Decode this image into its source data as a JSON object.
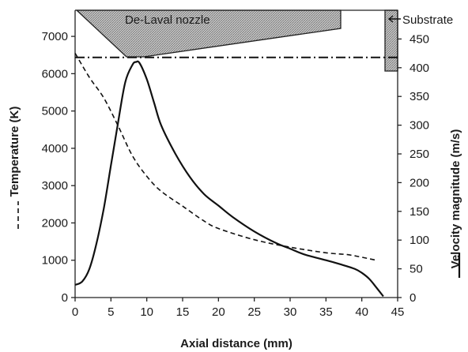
{
  "chart_data": {
    "type": "line",
    "title": "",
    "xlabel": "Axial distance (mm)",
    "ylabel": "Temperature (K)",
    "y2label": "Velocity magnitude (m/s)",
    "xlim": [
      0,
      45
    ],
    "ylim": [
      0,
      7700
    ],
    "y2lim": [
      0,
      500
    ],
    "xticks": [
      "0",
      "5",
      "10",
      "15",
      "20",
      "25",
      "30",
      "35",
      "40",
      "45"
    ],
    "yticks": [
      "0",
      "1000",
      "2000",
      "3000",
      "4000",
      "5000",
      "6000",
      "7000"
    ],
    "y2ticks": [
      "0",
      "50",
      "100",
      "150",
      "200",
      "250",
      "300",
      "350",
      "400",
      "450"
    ],
    "grid": false,
    "legend": "none",
    "series": [
      {
        "name": "Temperature",
        "axis": "left",
        "style": "dashed",
        "color": "#111111",
        "x": [
          0,
          2,
          4,
          6,
          8,
          10,
          12,
          15,
          18,
          20,
          25,
          30,
          35,
          38,
          40,
          42
        ],
        "y": [
          6550,
          5900,
          5350,
          4600,
          3800,
          3250,
          2850,
          2450,
          2050,
          1850,
          1550,
          1350,
          1200,
          1150,
          1080,
          1000
        ]
      },
      {
        "name": "Velocity magnitude",
        "axis": "right",
        "style": "solid",
        "color": "#111111",
        "x": [
          0,
          1,
          2,
          3,
          4,
          5,
          6,
          7,
          8,
          8.5,
          9,
          10,
          11,
          12,
          14,
          16,
          18,
          20,
          22,
          25,
          28,
          30,
          32,
          35,
          37,
          39,
          40,
          41,
          42,
          43
        ],
        "y": [
          22,
          28,
          50,
          95,
          155,
          230,
          305,
          375,
          405,
          410,
          408,
          380,
          340,
          300,
          250,
          210,
          180,
          160,
          140,
          115,
          95,
          85,
          75,
          65,
          58,
          50,
          43,
          33,
          18,
          2
        ]
      }
    ],
    "reference_line": {
      "y2": 418,
      "style": "dash-dot"
    },
    "annotations": {
      "nozzle_label": "De-Laval nozzle",
      "substrate_label": "Substrate",
      "temperature_axis_label": "Temperature (K)",
      "velocity_axis_label": "Velocity magnitude (m/s)"
    },
    "colors": {
      "ink": "#111111",
      "hatch": "#bdbdbd"
    }
  }
}
